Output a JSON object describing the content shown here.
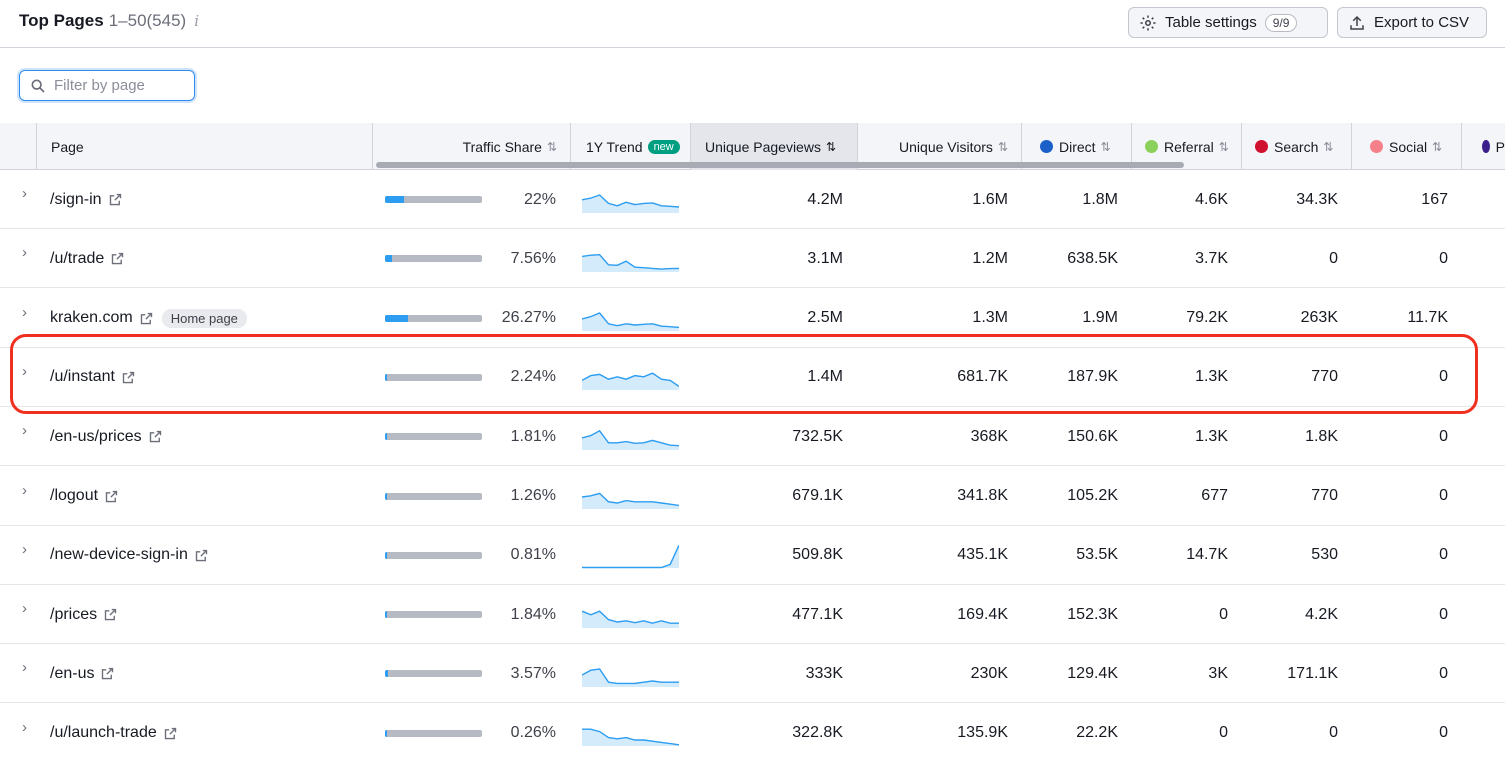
{
  "header": {
    "title": "Top Pages",
    "range": "1–50(545)",
    "info_icon": "i",
    "settings_label": "Table settings",
    "settings_count": "9/9",
    "export_label": "Export to CSV"
  },
  "filter": {
    "placeholder": "Filter by page"
  },
  "columns": {
    "page": "Page",
    "traffic_share": "Traffic Share",
    "trend": "1Y Trend",
    "trend_badge": "new",
    "pageviews": "Unique Pageviews",
    "visitors": "Unique Visitors",
    "direct": "Direct",
    "referral": "Referral",
    "search": "Search",
    "social": "Social",
    "paid": "P"
  },
  "colors": {
    "direct": "#1b5fc8",
    "referral": "#8bd05a",
    "search": "#d0102f",
    "social": "#f5808a",
    "paid": "#3b1f8c",
    "bar_fill": "#2c9df0",
    "highlight": "#f0301e"
  },
  "rows": [
    {
      "page": "/sign-in",
      "share": "22%",
      "share_value": 0.22,
      "pageviews": "4.2M",
      "visitors": "1.6M",
      "direct": "1.8M",
      "referral": "4.6K",
      "search": "34.3K",
      "social": "167",
      "trend": [
        0.55,
        0.62,
        0.75,
        0.4,
        0.3,
        0.45,
        0.35,
        0.4,
        0.42,
        0.3,
        0.28,
        0.25
      ]
    },
    {
      "page": "/u/trade",
      "share": "7.56%",
      "share_value": 0.0756,
      "pageviews": "3.1M",
      "visitors": "1.2M",
      "direct": "638.5K",
      "referral": "3.7K",
      "search": "0",
      "social": "0",
      "trend": [
        0.65,
        0.7,
        0.72,
        0.3,
        0.28,
        0.45,
        0.2,
        0.18,
        0.15,
        0.12,
        0.14,
        0.15
      ]
    },
    {
      "page": "kraken.com",
      "home_badge": "Home page",
      "share": "26.27%",
      "share_value": 0.2627,
      "pageviews": "2.5M",
      "visitors": "1.3M",
      "direct": "1.9M",
      "referral": "79.2K",
      "search": "263K",
      "social": "11.7K",
      "trend": [
        0.5,
        0.6,
        0.75,
        0.3,
        0.22,
        0.3,
        0.25,
        0.28,
        0.3,
        0.2,
        0.18,
        0.15
      ]
    },
    {
      "page": "/u/instant",
      "share": "2.24%",
      "share_value": 0.0224,
      "pageviews": "1.4M",
      "visitors": "681.7K",
      "direct": "187.9K",
      "referral": "1.3K",
      "search": "770",
      "social": "0",
      "trend": [
        0.4,
        0.6,
        0.65,
        0.45,
        0.55,
        0.45,
        0.6,
        0.55,
        0.7,
        0.45,
        0.4,
        0.15
      ],
      "highlighted": true
    },
    {
      "page": "/en-us/prices",
      "share": "1.81%",
      "share_value": 0.0181,
      "pageviews": "732.5K",
      "visitors": "368K",
      "direct": "150.6K",
      "referral": "1.3K",
      "search": "1.8K",
      "social": "0",
      "trend": [
        0.5,
        0.6,
        0.8,
        0.3,
        0.3,
        0.35,
        0.28,
        0.3,
        0.4,
        0.3,
        0.2,
        0.18
      ]
    },
    {
      "page": "/logout",
      "share": "1.26%",
      "share_value": 0.0126,
      "pageviews": "679.1K",
      "visitors": "341.8K",
      "direct": "105.2K",
      "referral": "677",
      "search": "770",
      "social": "0",
      "trend": [
        0.5,
        0.55,
        0.65,
        0.3,
        0.25,
        0.35,
        0.3,
        0.3,
        0.3,
        0.25,
        0.2,
        0.15
      ]
    },
    {
      "page": "/new-device-sign-in",
      "share": "0.81%",
      "share_value": 0.0081,
      "pageviews": "509.8K",
      "visitors": "435.1K",
      "direct": "53.5K",
      "referral": "14.7K",
      "search": "530",
      "social": "0",
      "trend": [
        0.02,
        0.02,
        0.02,
        0.02,
        0.02,
        0.02,
        0.02,
        0.02,
        0.02,
        0.02,
        0.15,
        0.95
      ]
    },
    {
      "page": "/prices",
      "share": "1.84%",
      "share_value": 0.0184,
      "pageviews": "477.1K",
      "visitors": "169.4K",
      "direct": "152.3K",
      "referral": "0",
      "search": "4.2K",
      "social": "0",
      "trend": [
        0.7,
        0.55,
        0.7,
        0.35,
        0.25,
        0.3,
        0.22,
        0.3,
        0.2,
        0.3,
        0.2,
        0.2
      ]
    },
    {
      "page": "/en-us",
      "share": "3.57%",
      "share_value": 0.0357,
      "pageviews": "333K",
      "visitors": "230K",
      "direct": "129.4K",
      "referral": "3K",
      "search": "171.1K",
      "social": "0",
      "trend": [
        0.5,
        0.7,
        0.75,
        0.2,
        0.15,
        0.15,
        0.15,
        0.2,
        0.25,
        0.2,
        0.2,
        0.2
      ]
    },
    {
      "page": "/u/launch-trade",
      "share": "0.26%",
      "share_value": 0.0026,
      "pageviews": "322.8K",
      "visitors": "135.9K",
      "direct": "22.2K",
      "referral": "0",
      "search": "0",
      "social": "0",
      "trend": [
        0.7,
        0.7,
        0.6,
        0.35,
        0.3,
        0.35,
        0.25,
        0.25,
        0.2,
        0.15,
        0.1,
        0.05
      ]
    }
  ]
}
